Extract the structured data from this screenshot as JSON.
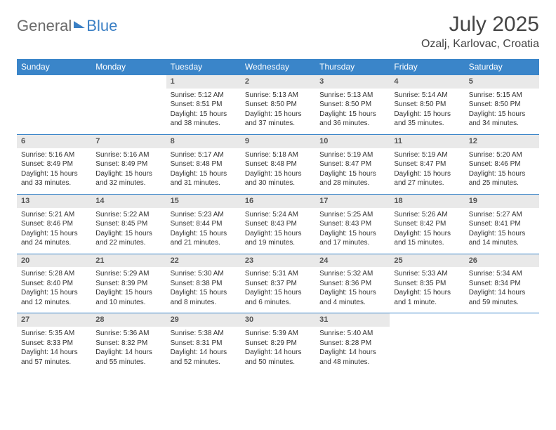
{
  "brand": {
    "part1": "General",
    "part2": "Blue"
  },
  "title": "July 2025",
  "location": "Ozalj, Karlovac, Croatia",
  "colors": {
    "header_bg": "#3a85c9",
    "header_text": "#ffffff",
    "daynum_bg": "#e9e9e9",
    "row_divider": "#3a85c9",
    "brand_gray": "#6a6a6a",
    "brand_blue": "#3a7fc4"
  },
  "layout": {
    "columns": 7,
    "header_font_size": 12,
    "cell_font_size": 10,
    "daynum_font_size": 11,
    "title_font_size": 30,
    "location_font_size": 16
  },
  "weekdays": [
    "Sunday",
    "Monday",
    "Tuesday",
    "Wednesday",
    "Thursday",
    "Friday",
    "Saturday"
  ],
  "weeks": [
    [
      {
        "n": "",
        "sr": "",
        "ss": "",
        "dl": ""
      },
      {
        "n": "",
        "sr": "",
        "ss": "",
        "dl": ""
      },
      {
        "n": "1",
        "sr": "Sunrise: 5:12 AM",
        "ss": "Sunset: 8:51 PM",
        "dl": "Daylight: 15 hours and 38 minutes."
      },
      {
        "n": "2",
        "sr": "Sunrise: 5:13 AM",
        "ss": "Sunset: 8:50 PM",
        "dl": "Daylight: 15 hours and 37 minutes."
      },
      {
        "n": "3",
        "sr": "Sunrise: 5:13 AM",
        "ss": "Sunset: 8:50 PM",
        "dl": "Daylight: 15 hours and 36 minutes."
      },
      {
        "n": "4",
        "sr": "Sunrise: 5:14 AM",
        "ss": "Sunset: 8:50 PM",
        "dl": "Daylight: 15 hours and 35 minutes."
      },
      {
        "n": "5",
        "sr": "Sunrise: 5:15 AM",
        "ss": "Sunset: 8:50 PM",
        "dl": "Daylight: 15 hours and 34 minutes."
      }
    ],
    [
      {
        "n": "6",
        "sr": "Sunrise: 5:16 AM",
        "ss": "Sunset: 8:49 PM",
        "dl": "Daylight: 15 hours and 33 minutes."
      },
      {
        "n": "7",
        "sr": "Sunrise: 5:16 AM",
        "ss": "Sunset: 8:49 PM",
        "dl": "Daylight: 15 hours and 32 minutes."
      },
      {
        "n": "8",
        "sr": "Sunrise: 5:17 AM",
        "ss": "Sunset: 8:48 PM",
        "dl": "Daylight: 15 hours and 31 minutes."
      },
      {
        "n": "9",
        "sr": "Sunrise: 5:18 AM",
        "ss": "Sunset: 8:48 PM",
        "dl": "Daylight: 15 hours and 30 minutes."
      },
      {
        "n": "10",
        "sr": "Sunrise: 5:19 AM",
        "ss": "Sunset: 8:47 PM",
        "dl": "Daylight: 15 hours and 28 minutes."
      },
      {
        "n": "11",
        "sr": "Sunrise: 5:19 AM",
        "ss": "Sunset: 8:47 PM",
        "dl": "Daylight: 15 hours and 27 minutes."
      },
      {
        "n": "12",
        "sr": "Sunrise: 5:20 AM",
        "ss": "Sunset: 8:46 PM",
        "dl": "Daylight: 15 hours and 25 minutes."
      }
    ],
    [
      {
        "n": "13",
        "sr": "Sunrise: 5:21 AM",
        "ss": "Sunset: 8:46 PM",
        "dl": "Daylight: 15 hours and 24 minutes."
      },
      {
        "n": "14",
        "sr": "Sunrise: 5:22 AM",
        "ss": "Sunset: 8:45 PM",
        "dl": "Daylight: 15 hours and 22 minutes."
      },
      {
        "n": "15",
        "sr": "Sunrise: 5:23 AM",
        "ss": "Sunset: 8:44 PM",
        "dl": "Daylight: 15 hours and 21 minutes."
      },
      {
        "n": "16",
        "sr": "Sunrise: 5:24 AM",
        "ss": "Sunset: 8:43 PM",
        "dl": "Daylight: 15 hours and 19 minutes."
      },
      {
        "n": "17",
        "sr": "Sunrise: 5:25 AM",
        "ss": "Sunset: 8:43 PM",
        "dl": "Daylight: 15 hours and 17 minutes."
      },
      {
        "n": "18",
        "sr": "Sunrise: 5:26 AM",
        "ss": "Sunset: 8:42 PM",
        "dl": "Daylight: 15 hours and 15 minutes."
      },
      {
        "n": "19",
        "sr": "Sunrise: 5:27 AM",
        "ss": "Sunset: 8:41 PM",
        "dl": "Daylight: 15 hours and 14 minutes."
      }
    ],
    [
      {
        "n": "20",
        "sr": "Sunrise: 5:28 AM",
        "ss": "Sunset: 8:40 PM",
        "dl": "Daylight: 15 hours and 12 minutes."
      },
      {
        "n": "21",
        "sr": "Sunrise: 5:29 AM",
        "ss": "Sunset: 8:39 PM",
        "dl": "Daylight: 15 hours and 10 minutes."
      },
      {
        "n": "22",
        "sr": "Sunrise: 5:30 AM",
        "ss": "Sunset: 8:38 PM",
        "dl": "Daylight: 15 hours and 8 minutes."
      },
      {
        "n": "23",
        "sr": "Sunrise: 5:31 AM",
        "ss": "Sunset: 8:37 PM",
        "dl": "Daylight: 15 hours and 6 minutes."
      },
      {
        "n": "24",
        "sr": "Sunrise: 5:32 AM",
        "ss": "Sunset: 8:36 PM",
        "dl": "Daylight: 15 hours and 4 minutes."
      },
      {
        "n": "25",
        "sr": "Sunrise: 5:33 AM",
        "ss": "Sunset: 8:35 PM",
        "dl": "Daylight: 15 hours and 1 minute."
      },
      {
        "n": "26",
        "sr": "Sunrise: 5:34 AM",
        "ss": "Sunset: 8:34 PM",
        "dl": "Daylight: 14 hours and 59 minutes."
      }
    ],
    [
      {
        "n": "27",
        "sr": "Sunrise: 5:35 AM",
        "ss": "Sunset: 8:33 PM",
        "dl": "Daylight: 14 hours and 57 minutes."
      },
      {
        "n": "28",
        "sr": "Sunrise: 5:36 AM",
        "ss": "Sunset: 8:32 PM",
        "dl": "Daylight: 14 hours and 55 minutes."
      },
      {
        "n": "29",
        "sr": "Sunrise: 5:38 AM",
        "ss": "Sunset: 8:31 PM",
        "dl": "Daylight: 14 hours and 52 minutes."
      },
      {
        "n": "30",
        "sr": "Sunrise: 5:39 AM",
        "ss": "Sunset: 8:29 PM",
        "dl": "Daylight: 14 hours and 50 minutes."
      },
      {
        "n": "31",
        "sr": "Sunrise: 5:40 AM",
        "ss": "Sunset: 8:28 PM",
        "dl": "Daylight: 14 hours and 48 minutes."
      },
      {
        "n": "",
        "sr": "",
        "ss": "",
        "dl": ""
      },
      {
        "n": "",
        "sr": "",
        "ss": "",
        "dl": ""
      }
    ]
  ]
}
